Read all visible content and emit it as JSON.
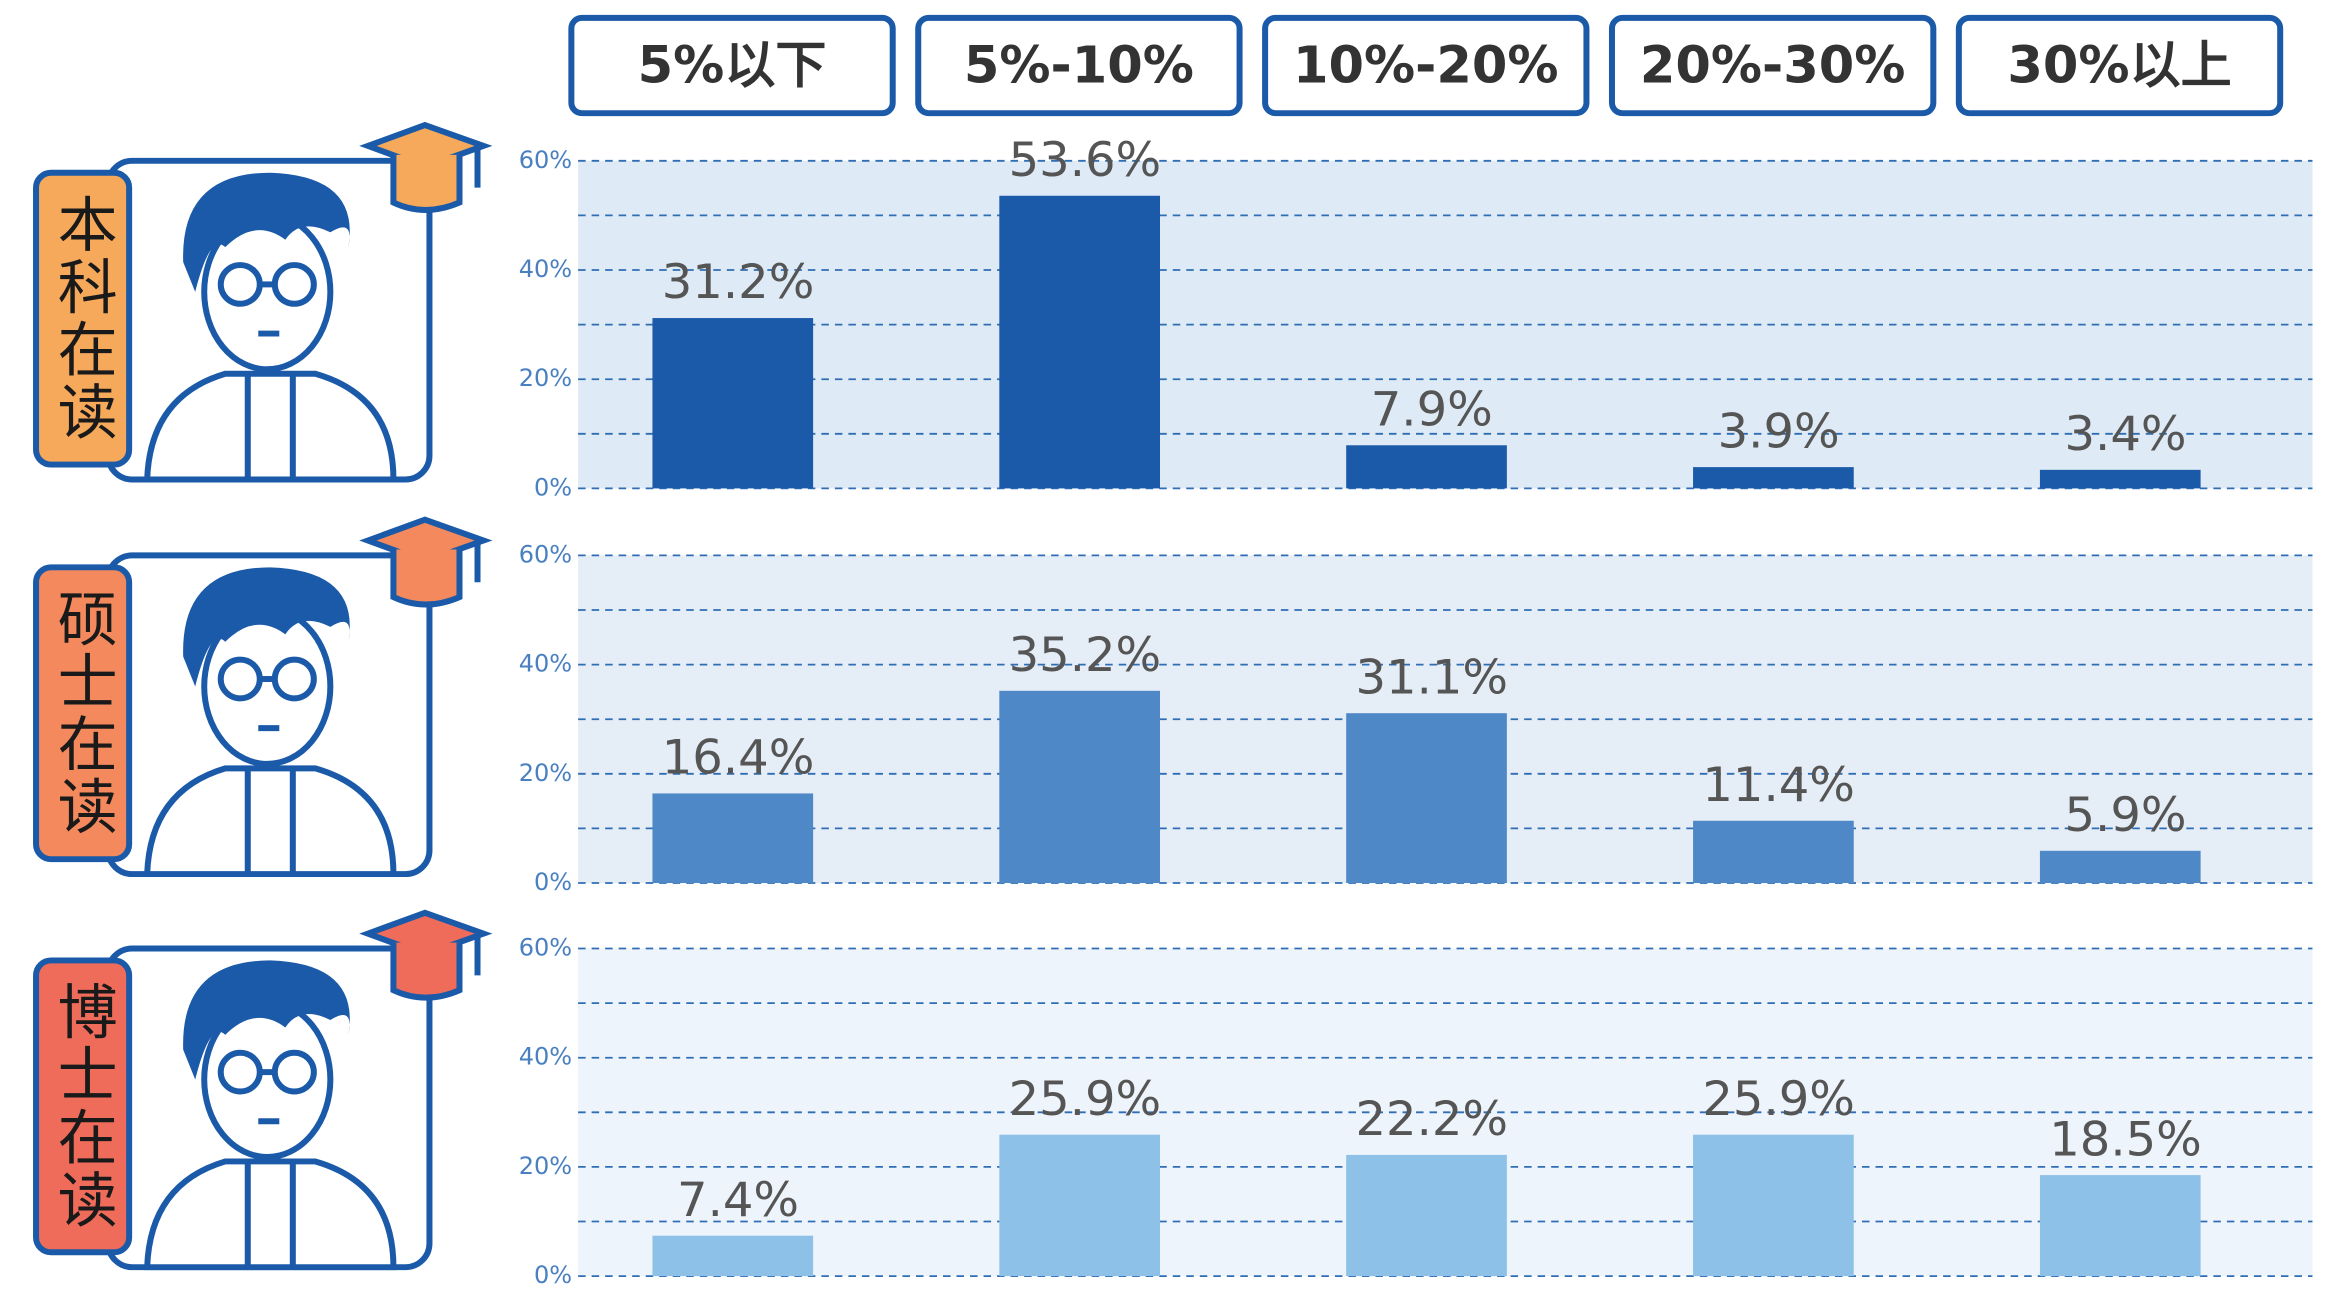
{
  "categories": [
    "5%以下",
    "5%-10%",
    "10%-20%",
    "20%-30%",
    "30%以上"
  ],
  "chart_data": [
    {
      "type": "bar",
      "label": "本科在读",
      "accent": "#f6a95a",
      "color": "#1b5aa8",
      "background": "#deeaf5",
      "values": [
        31.2,
        53.6,
        7.9,
        3.9,
        3.4
      ],
      "value_labels": [
        "31.2%",
        "53.6%",
        "7.9%",
        "3.9%",
        "3.4%"
      ],
      "ylim": [
        0,
        60
      ],
      "yticks": [
        {
          "value": 0,
          "label": "0%"
        },
        {
          "value": 20,
          "label": "20%"
        },
        {
          "value": 40,
          "label": "40%"
        },
        {
          "value": 60,
          "label": "60%"
        }
      ],
      "minor_yticks": [
        10,
        30,
        50
      ],
      "grid": true
    },
    {
      "type": "bar",
      "label": "硕士在读",
      "accent": "#f3895c",
      "color": "#4f88c6",
      "background": "#e5edf6",
      "values": [
        16.4,
        35.2,
        31.1,
        11.4,
        5.9
      ],
      "value_labels": [
        "16.4%",
        "35.2%",
        "31.1%",
        "11.4%",
        "5.9%"
      ],
      "ylim": [
        0,
        60
      ],
      "yticks": [
        {
          "value": 0,
          "label": "0%"
        },
        {
          "value": 20,
          "label": "20%"
        },
        {
          "value": 40,
          "label": "40%"
        },
        {
          "value": 60,
          "label": "60%"
        }
      ],
      "minor_yticks": [
        10,
        30,
        50
      ],
      "grid": true
    },
    {
      "type": "bar",
      "label": "博士在读",
      "accent": "#ef6b5a",
      "color": "#8dc1e8",
      "background": "#eef4fb",
      "values": [
        7.4,
        25.9,
        22.2,
        25.9,
        18.5
      ],
      "value_labels": [
        "7.4%",
        "25.9%",
        "22.2%",
        "25.9%",
        "18.5%"
      ],
      "ylim": [
        0,
        60
      ],
      "yticks": [
        {
          "value": 0,
          "label": "0%"
        },
        {
          "value": 20,
          "label": "20%"
        },
        {
          "value": 40,
          "label": "40%"
        },
        {
          "value": 60,
          "label": "60%"
        }
      ],
      "minor_yticks": [
        10,
        30,
        50
      ],
      "grid": true
    }
  ]
}
